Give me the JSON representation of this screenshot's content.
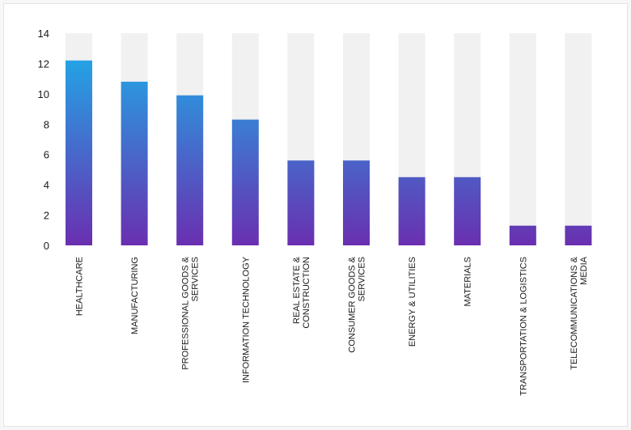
{
  "chart_data": {
    "type": "bar",
    "title": "",
    "xlabel": "",
    "ylabel": "",
    "ylim": [
      0,
      14
    ],
    "yticks": [
      0,
      2,
      4,
      6,
      8,
      10,
      12,
      14
    ],
    "grid": false,
    "legend": "none",
    "categories": [
      [
        "HEALTHCARE"
      ],
      [
        "MANUFACTURING"
      ],
      [
        "PROFESSIONAL GOODS &",
        "SERVICES"
      ],
      [
        "INFORMATION TECHNOLOGY"
      ],
      [
        "REAL ESTATE &",
        "CONSTRUCTION"
      ],
      [
        "CONSUMER GOODS &",
        "SERVICES"
      ],
      [
        "ENERGY & UTILITIES"
      ],
      [
        "MATERIALS"
      ],
      [
        "TRANSPORTATION & LOGISTICS"
      ],
      [
        "TELECOMMUNICATIONS &",
        "MEDIA"
      ]
    ],
    "values": [
      12.2,
      10.8,
      9.9,
      8.3,
      5.6,
      5.6,
      4.5,
      4.5,
      1.3,
      1.3
    ],
    "colors": {
      "bar_top": "#1ab3ec",
      "bar_bottom": "#6a2fb0",
      "background_bar": "#f1f1f1",
      "text": "#1a1a1a"
    }
  }
}
